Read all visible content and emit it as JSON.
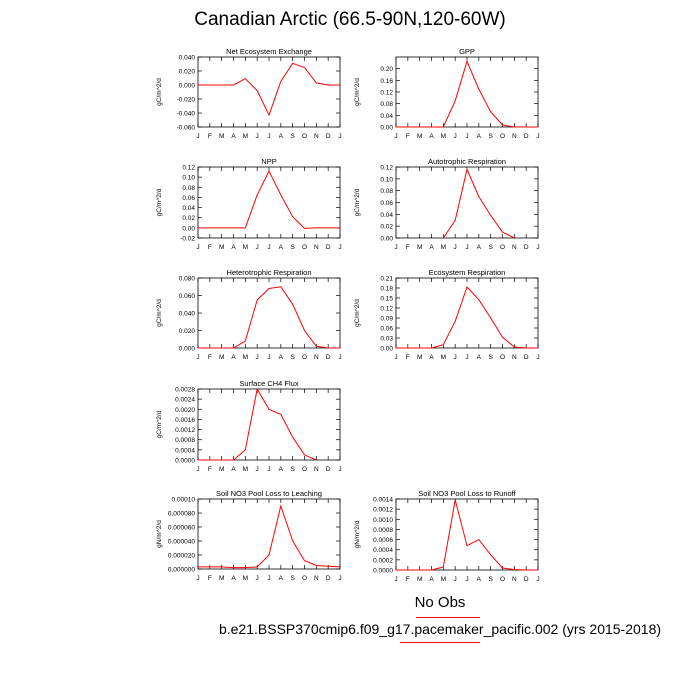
{
  "figure": {
    "title": "Canadian Arctic (66.5-90N,120-60W)",
    "legend_label": "No Obs",
    "case_label": "b.e21.BSSP370cmip6.f09_g17.pacemaker_pacific.002 (yrs 2015-2018)",
    "line_color": "#ff0000"
  },
  "chart_data": [
    {
      "type": "line",
      "title": "Net Ecosystem Exchange",
      "ylabel": "gC/m^2/d",
      "x": [
        "J",
        "F",
        "M",
        "A",
        "M",
        "J",
        "J",
        "A",
        "S",
        "O",
        "N",
        "D",
        "J"
      ],
      "ylim": [
        -0.06,
        0.04
      ],
      "yticks": [
        "-0.060",
        "-0.040",
        "-0.020",
        "0.000",
        "0.020",
        "0.040"
      ],
      "grid": false,
      "series": [
        {
          "values": [
            0.0,
            0.0,
            0.0,
            0.0,
            0.009,
            -0.008,
            -0.043,
            0.005,
            0.031,
            0.025,
            0.003,
            0.0,
            0.0
          ]
        }
      ]
    },
    {
      "type": "line",
      "title": "GPP",
      "ylabel": "gC/m^2/d",
      "x": [
        "J",
        "F",
        "M",
        "A",
        "M",
        "J",
        "J",
        "A",
        "S",
        "O",
        "N",
        "D",
        "J"
      ],
      "ylim": [
        0.0,
        0.24
      ],
      "yticks": [
        "0.00",
        "0.04",
        "0.08",
        "0.12",
        "0.16",
        "0.20"
      ],
      "grid": false,
      "series": [
        {
          "values": [
            0.0,
            0.0,
            0.0,
            0.0,
            0.0,
            0.09,
            0.225,
            0.13,
            0.052,
            0.007,
            0.0,
            0.0,
            0.0
          ]
        }
      ]
    },
    {
      "type": "line",
      "title": "NPP",
      "ylabel": "gC/m^2/d",
      "x": [
        "J",
        "F",
        "M",
        "A",
        "M",
        "J",
        "J",
        "A",
        "S",
        "O",
        "N",
        "D",
        "J"
      ],
      "ylim": [
        -0.02,
        0.12
      ],
      "yticks": [
        "-0.02",
        "0.00",
        "0.02",
        "0.04",
        "0.06",
        "0.08",
        "0.10",
        "0.12"
      ],
      "grid": false,
      "series": [
        {
          "values": [
            0.0,
            0.0,
            0.0,
            0.0,
            0.0,
            0.065,
            0.112,
            0.065,
            0.022,
            -0.001,
            0.0,
            0.0,
            0.0
          ]
        }
      ]
    },
    {
      "type": "line",
      "title": "Autotrophic Respiration",
      "ylabel": "gC/m^2/d",
      "x": [
        "J",
        "F",
        "M",
        "A",
        "M",
        "J",
        "J",
        "A",
        "S",
        "O",
        "N",
        "D",
        "J"
      ],
      "ylim": [
        0.0,
        0.12
      ],
      "yticks": [
        "0.00",
        "0.02",
        "0.04",
        "0.06",
        "0.08",
        "0.10",
        "0.12"
      ],
      "grid": false,
      "series": [
        {
          "values": [
            null,
            null,
            null,
            null,
            0.0,
            0.03,
            0.116,
            0.07,
            0.038,
            0.01,
            0.0,
            null,
            null
          ]
        }
      ]
    },
    {
      "type": "line",
      "title": "Heterotrophic Respiration",
      "ylabel": "gC/m^2/d",
      "x": [
        "J",
        "F",
        "M",
        "A",
        "M",
        "J",
        "J",
        "A",
        "S",
        "O",
        "N",
        "D",
        "J"
      ],
      "ylim": [
        0.0,
        0.08
      ],
      "yticks": [
        "0.000",
        "0.020",
        "0.040",
        "0.060",
        "0.080"
      ],
      "grid": false,
      "series": [
        {
          "values": [
            0.0,
            0.0,
            0.0,
            0.0,
            0.008,
            0.055,
            0.068,
            0.07,
            0.05,
            0.02,
            0.002,
            0.0,
            0.0
          ]
        }
      ]
    },
    {
      "type": "line",
      "title": "Ecosystem Respiration",
      "ylabel": "gC/m^2/d",
      "x": [
        "J",
        "F",
        "M",
        "A",
        "M",
        "J",
        "J",
        "A",
        "S",
        "O",
        "N",
        "D",
        "J"
      ],
      "ylim": [
        0.0,
        0.21
      ],
      "yticks": [
        "0.00",
        "0.03",
        "0.06",
        "0.09",
        "0.12",
        "0.15",
        "0.18",
        "0.21"
      ],
      "grid": false,
      "series": [
        {
          "values": [
            0.0,
            0.0,
            0.0,
            0.0,
            0.01,
            0.08,
            0.183,
            0.145,
            0.09,
            0.032,
            0.003,
            0.0,
            0.0
          ]
        }
      ]
    },
    {
      "type": "line",
      "title": "Surface CH4 Flux",
      "ylabel": "gC/m^2/d",
      "x": [
        "J",
        "F",
        "M",
        "A",
        "M",
        "J",
        "J",
        "A",
        "S",
        "O",
        "N",
        "D",
        "J"
      ],
      "ylim": [
        0.0,
        0.0028
      ],
      "yticks": [
        "0.0000",
        "0.0004",
        "0.0008",
        "0.0012",
        "0.0016",
        "0.0020",
        "0.0024",
        "0.0028"
      ],
      "grid": false,
      "series": [
        {
          "values": [
            0.0,
            0.0,
            0.0,
            0.0,
            0.0004,
            0.0028,
            0.002,
            0.0018,
            0.0009,
            0.0002,
            0.0,
            null,
            null
          ]
        }
      ]
    },
    {
      "type": "line",
      "title": "Soil NO3 Pool Loss to Leaching",
      "ylabel": "gN/m^2/d",
      "x": [
        "J",
        "F",
        "M",
        "A",
        "M",
        "J",
        "J",
        "A",
        "S",
        "O",
        "N",
        "D",
        "J"
      ],
      "ylim": [
        0.0,
        0.0001
      ],
      "yticks": [
        "0.000000",
        "0.000020",
        "0.000040",
        "0.000060",
        "0.000080",
        "0.00010"
      ],
      "grid": false,
      "series": [
        {
          "values": [
            3e-06,
            3e-06,
            3e-06,
            2e-06,
            2e-06,
            3e-06,
            2e-05,
            9e-05,
            4e-05,
            1.2e-05,
            5e-06,
            4e-06,
            3e-06
          ]
        }
      ]
    },
    {
      "type": "line",
      "title": "Soil NO3 Pool Loss to Runoff",
      "ylabel": "gN/m^2/d",
      "x": [
        "J",
        "F",
        "M",
        "A",
        "M",
        "J",
        "J",
        "A",
        "S",
        "O",
        "N",
        "D",
        "J"
      ],
      "ylim": [
        0.0,
        0.0014
      ],
      "yticks": [
        "0.0000",
        "0.0002",
        "0.0004",
        "0.0006",
        "0.0008",
        "0.0010",
        "0.0012",
        "0.0014"
      ],
      "grid": false,
      "series": [
        {
          "values": [
            0.0,
            0.0,
            0.0,
            0.0,
            6e-05,
            0.00138,
            0.00048,
            0.0006,
            0.0003,
            4e-05,
            1e-05,
            0.0,
            0.0
          ]
        }
      ]
    }
  ]
}
